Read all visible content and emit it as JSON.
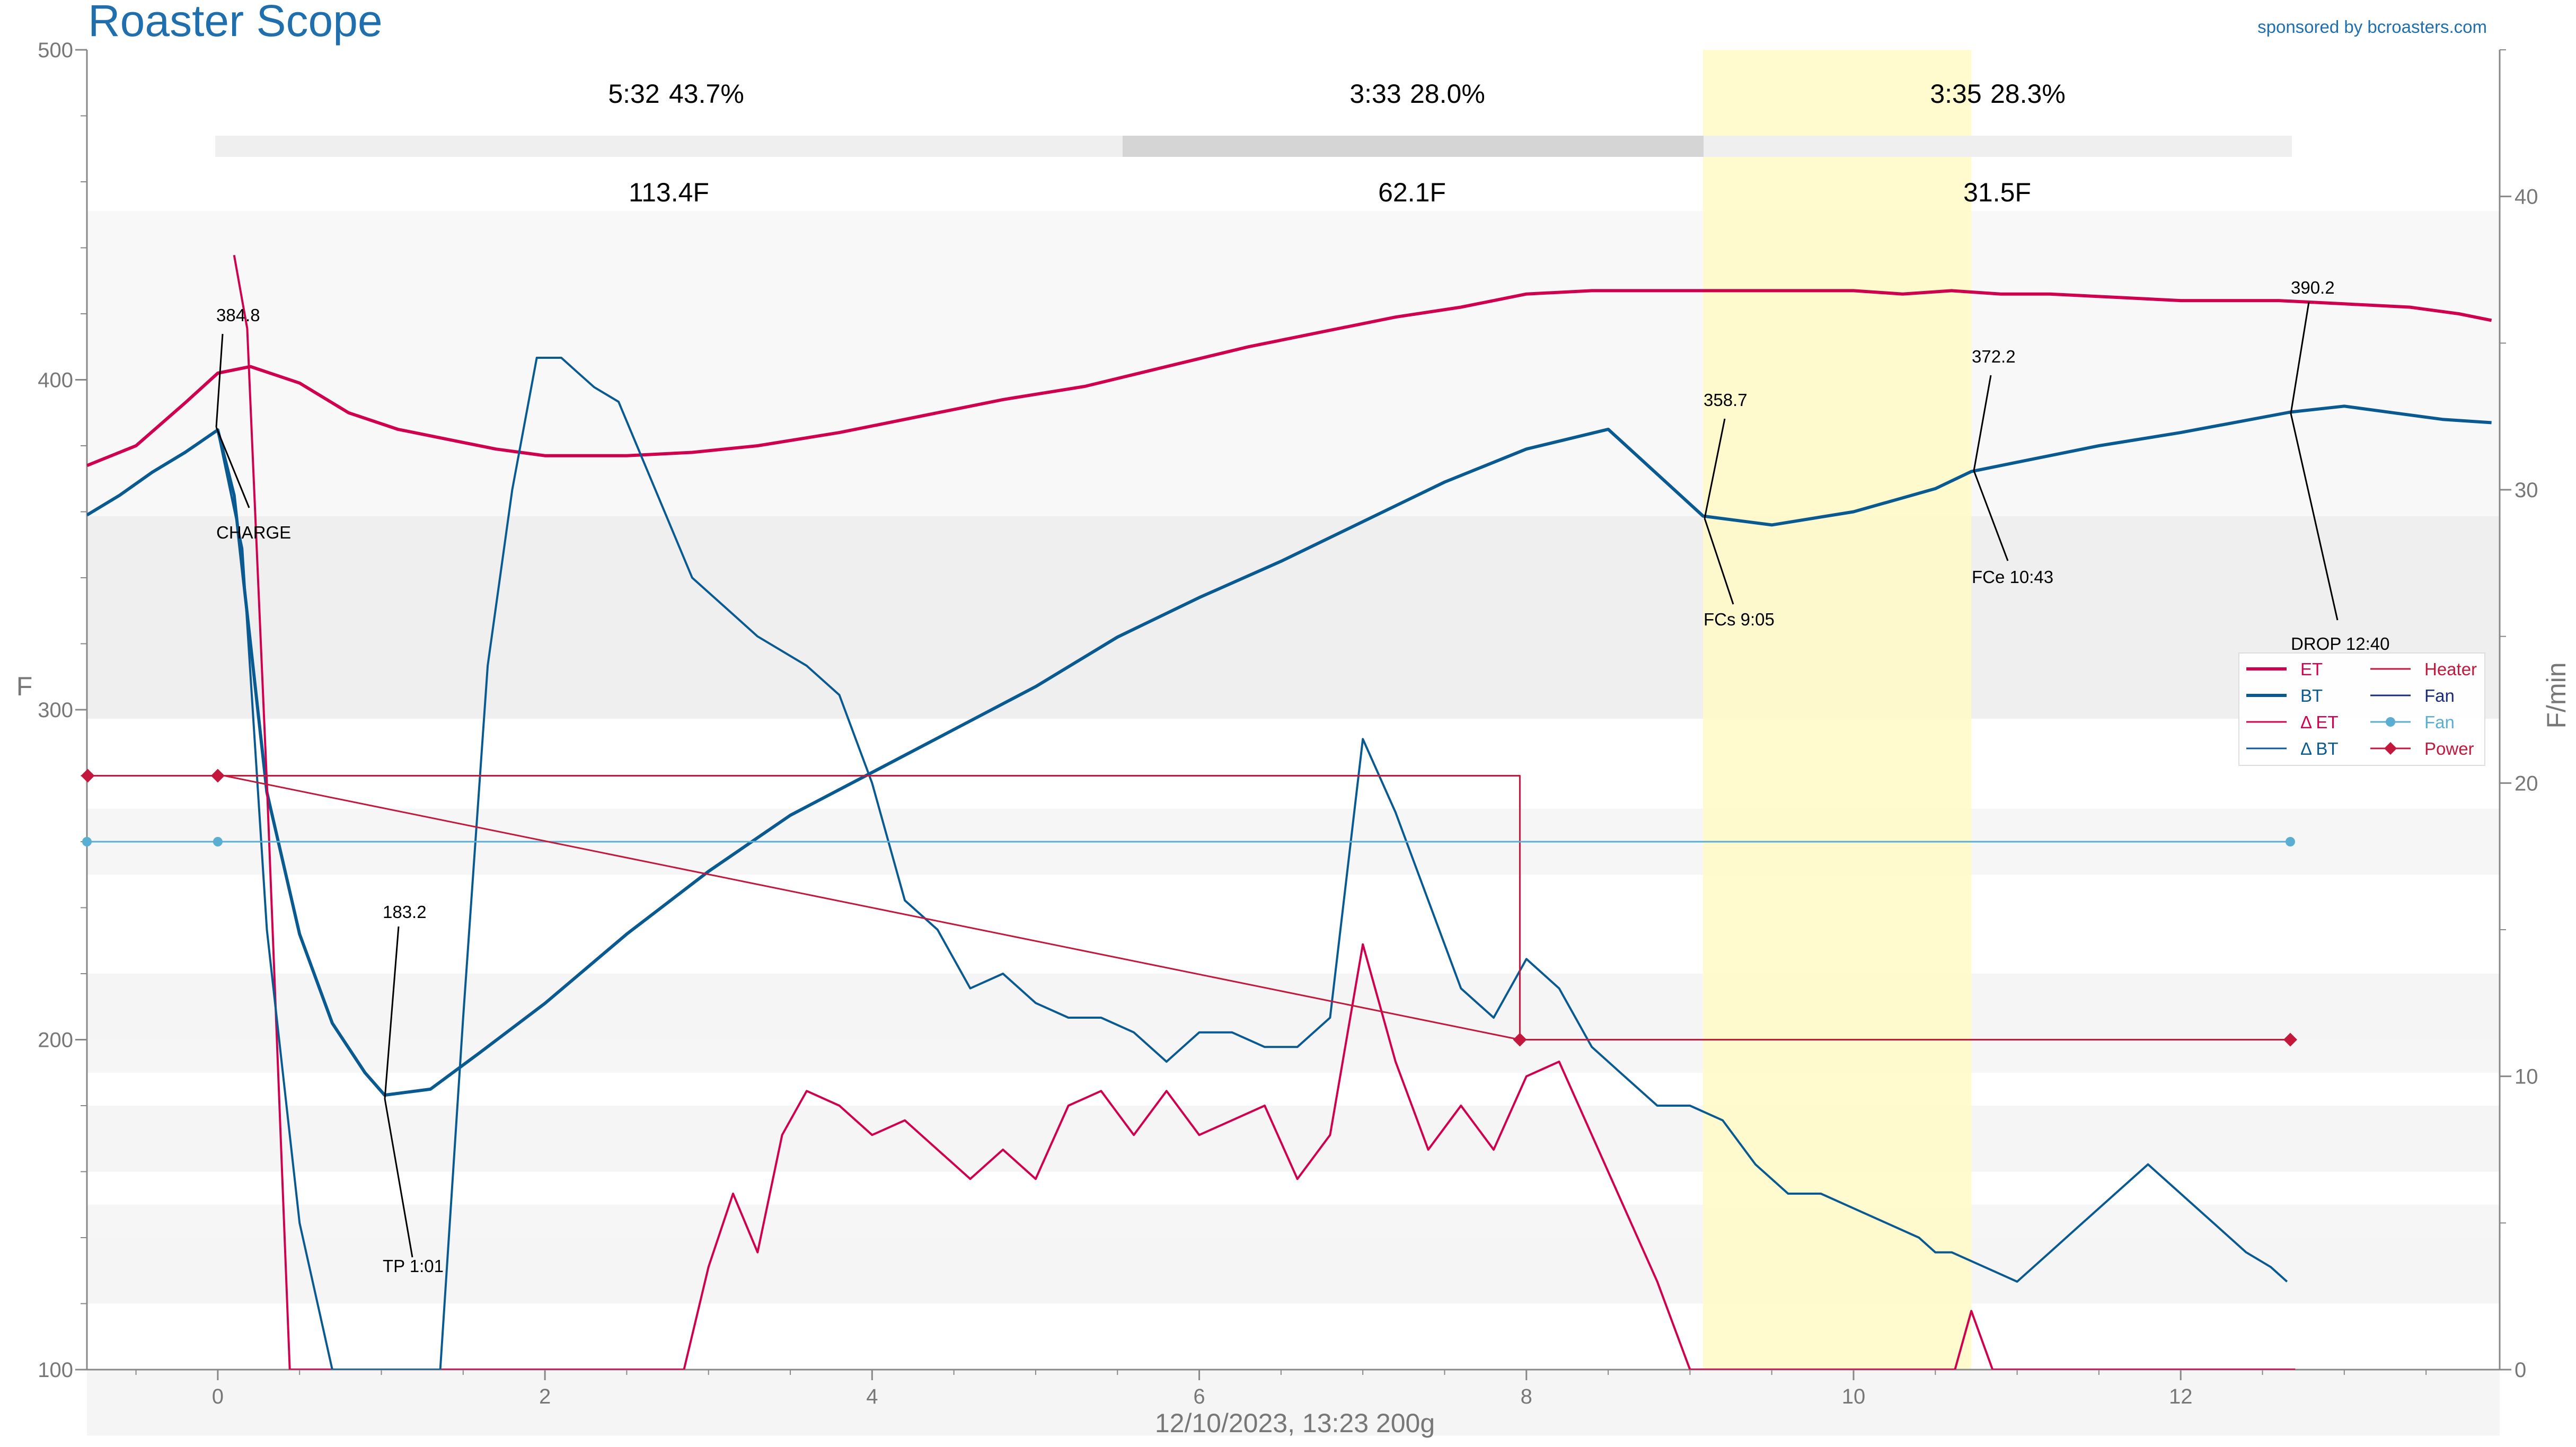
{
  "app": {
    "title": "Roaster Scope",
    "sponsor": "sponsored by bcroasters.com",
    "footer": "12/10/2023, 13:23   200g"
  },
  "colors": {
    "et": "#d1004f",
    "bt": "#0a5a92",
    "delta_et": "#d1004f",
    "delta_bt": "#0a5a92",
    "heater": "#c3183c",
    "fan_line": "#5aaed2",
    "power": "#c3183c",
    "title": "#1f6fae",
    "highlight": "#fffac6"
  },
  "phases": [
    {
      "time": "5:32",
      "percent": "43.7%",
      "rise": "113.4F"
    },
    {
      "time": "3:33",
      "percent": "28.0%",
      "rise": "62.1F"
    },
    {
      "time": "3:35",
      "percent": "28.3%",
      "rise": "31.5F"
    }
  ],
  "events": [
    {
      "label": "CHARGE",
      "value": "384.8"
    },
    {
      "label": "TP 1:01",
      "value": "183.2"
    },
    {
      "label": "FCs 9:05",
      "value": "358.7"
    },
    {
      "label": "FCe 10:43",
      "value": "372.2"
    },
    {
      "label": "DROP 12:40",
      "value": "390.2"
    }
  ],
  "legend": [
    {
      "label": "ET",
      "color": "#d1004f",
      "marker": "line"
    },
    {
      "label": "Heater",
      "color": "#c3183c",
      "marker": "thin-line"
    },
    {
      "label": "BT",
      "color": "#0a5a92",
      "marker": "line"
    },
    {
      "label": "Fan",
      "color": "#1b2a7a",
      "marker": "thin-line"
    },
    {
      "label": "Δ ET",
      "color": "#d1004f",
      "marker": "thin-line"
    },
    {
      "label": "Fan",
      "color": "#5aaed2",
      "marker": "dot"
    },
    {
      "label": "Δ BT",
      "color": "#0a5a92",
      "marker": "thin-line"
    },
    {
      "label": "Power",
      "color": "#c3183c",
      "marker": "diamond"
    }
  ],
  "chart_data": {
    "type": "line",
    "ylabel": "F",
    "y2label": "F/min",
    "xlim": [
      -0.8,
      13.95
    ],
    "ylim": [
      100,
      500
    ],
    "y2lim": [
      0,
      45
    ],
    "xticks": [
      0,
      2,
      4,
      6,
      8,
      10,
      12
    ],
    "yticks": [
      100,
      200,
      300,
      400,
      500
    ],
    "y2ticks": [
      0,
      10,
      20,
      30,
      40
    ],
    "highlight_range": [
      9.08,
      10.72
    ],
    "series": [
      {
        "name": "ET",
        "axis": "left",
        "x": [
          -0.8,
          -0.5,
          -0.2,
          0,
          0.2,
          0.5,
          0.8,
          1.1,
          1.4,
          1.7,
          2,
          2.5,
          2.9,
          3.3,
          3.8,
          4.3,
          4.8,
          5.3,
          5.8,
          6.3,
          6.8,
          7.2,
          7.6,
          8,
          8.4,
          8.8,
          9.2,
          9.6,
          10,
          10.3,
          10.6,
          10.9,
          11.2,
          11.6,
          12,
          12.2,
          12.6,
          13,
          13.4,
          13.7,
          13.9
        ],
        "values": [
          374,
          380,
          393,
          402,
          404,
          399,
          390,
          385,
          382,
          379,
          377,
          377,
          378,
          380,
          384,
          389,
          394,
          398,
          404,
          410,
          415,
          419,
          422,
          426,
          427,
          427,
          427,
          427,
          427,
          426,
          427,
          426,
          426,
          425,
          424,
          424,
          424,
          423,
          422,
          420,
          418
        ]
      },
      {
        "name": "BT",
        "axis": "left",
        "x": [
          -0.8,
          -0.6,
          -0.4,
          -0.2,
          0,
          0.1,
          0.3,
          0.5,
          0.7,
          0.9,
          1.02,
          1.3,
          1.6,
          2,
          2.5,
          3,
          3.5,
          4,
          4.5,
          5,
          5.5,
          6,
          6.5,
          7,
          7.5,
          8,
          8.5,
          9.08,
          9.5,
          10,
          10.5,
          10.72,
          11,
          11.5,
          12,
          12.67,
          13,
          13.3,
          13.6,
          13.9
        ],
        "values": [
          359,
          365,
          372,
          378,
          384.8,
          365,
          275,
          232,
          205,
          190,
          183.2,
          185,
          196,
          211,
          232,
          251,
          268,
          281,
          294,
          307,
          322,
          334,
          345,
          357,
          369,
          379,
          385,
          358.7,
          356,
          360,
          367,
          372.2,
          375,
          380,
          384,
          390.2,
          392,
          390,
          388,
          387
        ]
      },
      {
        "name": "Δ ET",
        "axis": "right",
        "x": [
          0.1,
          0.18,
          0.3,
          0.44,
          0.5,
          2.4,
          2.85,
          3,
          3.15,
          3.3,
          3.45,
          3.6,
          3.8,
          4,
          4.2,
          4.4,
          4.6,
          4.8,
          5,
          5.2,
          5.4,
          5.6,
          5.8,
          6,
          6.2,
          6.4,
          6.6,
          6.8,
          7,
          7.2,
          7.4,
          7.6,
          7.8,
          8,
          8.2,
          8.4,
          8.6,
          8.8,
          9,
          9.2,
          9.6,
          10,
          10.4,
          10.62,
          10.72,
          10.85,
          11,
          11.5,
          12,
          12.7
        ],
        "values": [
          38,
          35.5,
          20,
          0,
          0,
          0,
          0,
          3.5,
          6,
          4,
          8,
          9.5,
          9,
          8,
          8.5,
          7.5,
          6.5,
          7.5,
          6.5,
          9,
          9.5,
          8,
          9.5,
          8,
          8.5,
          9,
          6.5,
          8,
          14.5,
          10.5,
          7.5,
          9,
          7.5,
          10,
          10.5,
          8,
          5.5,
          3,
          0,
          0,
          0,
          0,
          0,
          0,
          2,
          0,
          0,
          0,
          0,
          0
        ]
      },
      {
        "name": "Δ BT",
        "axis": "right",
        "x": [
          0,
          0.15,
          0.3,
          0.5,
          0.7,
          0.9,
          1.1,
          1.36,
          1.5,
          1.65,
          1.8,
          1.95,
          2.1,
          2.2,
          2.3,
          2.45,
          2.6,
          2.75,
          2.9,
          3.1,
          3.3,
          3.6,
          3.8,
          4,
          4.2,
          4.4,
          4.6,
          4.8,
          5,
          5.2,
          5.4,
          5.6,
          5.8,
          6,
          6.2,
          6.4,
          6.6,
          6.8,
          7,
          7.2,
          7.4,
          7.6,
          7.8,
          8,
          8.2,
          8.4,
          8.6,
          8.8,
          9,
          9.2,
          9.4,
          9.6,
          9.8,
          10,
          10.2,
          10.4,
          10.5,
          10.6,
          10.8,
          11,
          11.2,
          11.4,
          11.6,
          11.8,
          12,
          12.2,
          12.4,
          12.55,
          12.65
        ],
        "values": [
          32,
          28,
          15,
          5,
          0,
          0,
          0,
          0,
          12,
          24,
          30,
          34.5,
          34.5,
          34,
          33.5,
          33,
          31,
          29,
          27,
          26,
          25,
          24,
          23,
          20,
          16,
          15,
          13,
          13.5,
          12.5,
          12,
          12,
          11.5,
          10.5,
          11.5,
          11.5,
          11,
          11,
          12,
          21.5,
          19,
          16,
          13,
          12,
          14,
          13,
          11,
          10,
          9,
          9,
          8.5,
          7,
          6,
          6,
          5.5,
          5,
          4.5,
          4,
          4,
          3.5,
          3,
          4,
          5,
          6,
          7,
          6,
          5,
          4,
          3.5,
          3
        ]
      },
      {
        "name": "Heater",
        "axis": "left",
        "x": [
          -0.8,
          7.96,
          7.96,
          12.67
        ],
        "values": [
          280,
          280,
          200,
          200
        ]
      },
      {
        "name": "Fan",
        "axis": "left",
        "x": [
          -0.8,
          12.67
        ],
        "values": [
          260,
          260
        ]
      },
      {
        "name": "Power",
        "axis": "left",
        "x": [
          -0.8,
          0.04,
          7.96,
          12.67
        ],
        "values": [
          280,
          280,
          200,
          200
        ]
      }
    ]
  }
}
